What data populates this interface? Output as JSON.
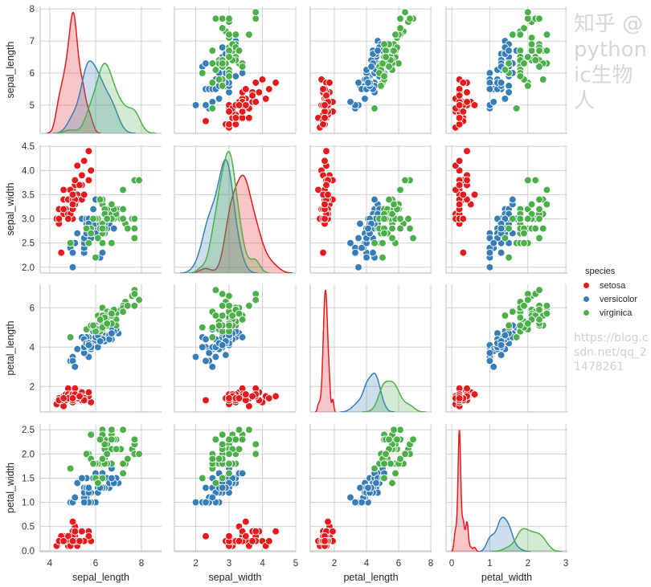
{
  "chart_data": {
    "type": "scatter",
    "subtype": "pairplot",
    "variables": [
      "sepal_length",
      "sepal_width",
      "petal_length",
      "petal_width"
    ],
    "axis_labels": [
      "sepal_length",
      "sepal_width",
      "petal_length",
      "petal_width"
    ],
    "x_ticks": [
      [
        "4",
        "6",
        "8"
      ],
      [
        "2",
        "3",
        "4",
        "5"
      ],
      [
        "2",
        "4",
        "6",
        "8"
      ],
      [
        "0",
        "1",
        "2",
        "3"
      ]
    ],
    "y_ticks": [
      [
        "5",
        "6",
        "7",
        "8"
      ],
      [
        "2.0",
        "2.5",
        "3.0",
        "3.5",
        "4.0",
        "4.5"
      ],
      [
        "2",
        "4",
        "6"
      ],
      [
        "0.0",
        "0.5",
        "1.0",
        "1.5",
        "2.0",
        "2.5"
      ]
    ],
    "xlim": [
      [
        3.58,
        8.88
      ],
      [
        1.36,
        5.0
      ],
      [
        0.5,
        8.05
      ],
      [
        -0.15,
        3.04
      ]
    ],
    "ylim": [
      [
        4.12,
        8.08
      ],
      [
        1.88,
        4.52
      ],
      [
        0.705,
        7.195
      ],
      [
        -0.02,
        2.62
      ]
    ],
    "diagonal": "kde",
    "grid": true,
    "legend_placement": "right",
    "legend": {
      "title": "species",
      "entries": [
        "setosa",
        "versicolor",
        "virginica"
      ]
    },
    "colors": {
      "setosa": "#e41a1c",
      "versicolor": "#377eb8",
      "virginica": "#4daf4a"
    },
    "series": [
      {
        "name": "setosa",
        "values": [
          [
            5.1,
            3.5,
            1.4,
            0.2
          ],
          [
            4.9,
            3.0,
            1.4,
            0.2
          ],
          [
            4.7,
            3.2,
            1.3,
            0.2
          ],
          [
            4.6,
            3.1,
            1.5,
            0.2
          ],
          [
            5.0,
            3.6,
            1.4,
            0.2
          ],
          [
            5.4,
            3.9,
            1.7,
            0.4
          ],
          [
            4.6,
            3.4,
            1.4,
            0.3
          ],
          [
            5.0,
            3.4,
            1.5,
            0.2
          ],
          [
            4.4,
            2.9,
            1.4,
            0.2
          ],
          [
            4.9,
            3.1,
            1.5,
            0.1
          ],
          [
            5.4,
            3.7,
            1.5,
            0.2
          ],
          [
            4.8,
            3.4,
            1.6,
            0.2
          ],
          [
            4.8,
            3.0,
            1.4,
            0.1
          ],
          [
            4.3,
            3.0,
            1.1,
            0.1
          ],
          [
            5.8,
            4.0,
            1.2,
            0.2
          ],
          [
            5.7,
            4.4,
            1.5,
            0.4
          ],
          [
            5.4,
            3.9,
            1.3,
            0.4
          ],
          [
            5.1,
            3.5,
            1.4,
            0.3
          ],
          [
            5.7,
            3.8,
            1.7,
            0.3
          ],
          [
            5.1,
            3.8,
            1.5,
            0.3
          ],
          [
            5.4,
            3.4,
            1.7,
            0.2
          ],
          [
            5.1,
            3.7,
            1.5,
            0.4
          ],
          [
            4.6,
            3.6,
            1.0,
            0.2
          ],
          [
            5.1,
            3.3,
            1.7,
            0.5
          ],
          [
            4.8,
            3.4,
            1.9,
            0.2
          ],
          [
            5.0,
            3.0,
            1.6,
            0.2
          ],
          [
            5.0,
            3.4,
            1.6,
            0.4
          ],
          [
            5.2,
            3.5,
            1.5,
            0.2
          ],
          [
            5.2,
            3.4,
            1.4,
            0.2
          ],
          [
            4.7,
            3.2,
            1.6,
            0.2
          ],
          [
            4.8,
            3.1,
            1.6,
            0.2
          ],
          [
            5.4,
            3.4,
            1.5,
            0.4
          ],
          [
            5.2,
            4.1,
            1.5,
            0.1
          ],
          [
            5.5,
            4.2,
            1.4,
            0.2
          ],
          [
            4.9,
            3.1,
            1.5,
            0.2
          ],
          [
            5.0,
            3.2,
            1.2,
            0.2
          ],
          [
            5.5,
            3.5,
            1.3,
            0.2
          ],
          [
            4.9,
            3.6,
            1.4,
            0.1
          ],
          [
            4.4,
            3.0,
            1.3,
            0.2
          ],
          [
            5.1,
            3.4,
            1.5,
            0.2
          ],
          [
            5.0,
            3.5,
            1.3,
            0.3
          ],
          [
            4.5,
            2.3,
            1.3,
            0.3
          ],
          [
            4.4,
            3.2,
            1.3,
            0.2
          ],
          [
            5.0,
            3.5,
            1.6,
            0.6
          ],
          [
            5.1,
            3.8,
            1.9,
            0.4
          ],
          [
            4.8,
            3.0,
            1.4,
            0.3
          ],
          [
            5.1,
            3.8,
            1.6,
            0.2
          ],
          [
            4.6,
            3.2,
            1.4,
            0.2
          ],
          [
            5.3,
            3.7,
            1.5,
            0.2
          ],
          [
            5.0,
            3.3,
            1.4,
            0.2
          ]
        ]
      },
      {
        "name": "versicolor",
        "values": [
          [
            7.0,
            3.2,
            4.7,
            1.4
          ],
          [
            6.4,
            3.2,
            4.5,
            1.5
          ],
          [
            6.9,
            3.1,
            4.9,
            1.5
          ],
          [
            5.5,
            2.3,
            4.0,
            1.3
          ],
          [
            6.5,
            2.8,
            4.6,
            1.5
          ],
          [
            5.7,
            2.8,
            4.5,
            1.3
          ],
          [
            6.3,
            3.3,
            4.7,
            1.6
          ],
          [
            4.9,
            2.4,
            3.3,
            1.0
          ],
          [
            6.6,
            2.9,
            4.6,
            1.3
          ],
          [
            5.2,
            2.7,
            3.9,
            1.4
          ],
          [
            5.0,
            2.0,
            3.5,
            1.0
          ],
          [
            5.9,
            3.0,
            4.2,
            1.5
          ],
          [
            6.0,
            2.2,
            4.0,
            1.0
          ],
          [
            6.1,
            2.9,
            4.7,
            1.4
          ],
          [
            5.6,
            2.9,
            3.6,
            1.3
          ],
          [
            6.7,
            3.1,
            4.4,
            1.4
          ],
          [
            5.6,
            3.0,
            4.5,
            1.5
          ],
          [
            5.8,
            2.7,
            4.1,
            1.0
          ],
          [
            6.2,
            2.2,
            4.5,
            1.5
          ],
          [
            5.6,
            2.5,
            3.9,
            1.1
          ],
          [
            5.9,
            3.2,
            4.8,
            1.8
          ],
          [
            6.1,
            2.8,
            4.0,
            1.3
          ],
          [
            6.3,
            2.5,
            4.9,
            1.5
          ],
          [
            6.1,
            2.8,
            4.7,
            1.2
          ],
          [
            6.4,
            2.9,
            4.3,
            1.3
          ],
          [
            6.6,
            3.0,
            4.4,
            1.4
          ],
          [
            6.8,
            2.8,
            4.8,
            1.4
          ],
          [
            6.7,
            3.0,
            5.0,
            1.7
          ],
          [
            6.0,
            2.9,
            4.5,
            1.5
          ],
          [
            5.7,
            2.6,
            3.5,
            1.0
          ],
          [
            5.5,
            2.4,
            3.8,
            1.1
          ],
          [
            5.5,
            2.4,
            3.7,
            1.0
          ],
          [
            5.8,
            2.7,
            3.9,
            1.2
          ],
          [
            6.0,
            2.7,
            5.1,
            1.6
          ],
          [
            5.4,
            3.0,
            4.5,
            1.5
          ],
          [
            6.0,
            3.4,
            4.5,
            1.6
          ],
          [
            6.7,
            3.1,
            4.7,
            1.5
          ],
          [
            6.3,
            2.3,
            4.4,
            1.3
          ],
          [
            5.6,
            3.0,
            4.1,
            1.3
          ],
          [
            5.5,
            2.5,
            4.0,
            1.3
          ],
          [
            5.5,
            2.6,
            4.4,
            1.2
          ],
          [
            6.1,
            3.0,
            4.6,
            1.4
          ],
          [
            5.8,
            2.6,
            4.0,
            1.2
          ],
          [
            5.0,
            2.3,
            3.3,
            1.0
          ],
          [
            5.6,
            2.7,
            4.2,
            1.3
          ],
          [
            5.7,
            3.0,
            4.2,
            1.2
          ],
          [
            5.7,
            2.9,
            4.2,
            1.3
          ],
          [
            6.2,
            2.9,
            4.3,
            1.3
          ],
          [
            5.1,
            2.5,
            3.0,
            1.1
          ],
          [
            5.7,
            2.8,
            4.1,
            1.3
          ]
        ]
      },
      {
        "name": "virginica",
        "values": [
          [
            6.3,
            3.3,
            6.0,
            2.5
          ],
          [
            5.8,
            2.7,
            5.1,
            1.9
          ],
          [
            7.1,
            3.0,
            5.9,
            2.1
          ],
          [
            6.3,
            2.9,
            5.6,
            1.8
          ],
          [
            6.5,
            3.0,
            5.8,
            2.2
          ],
          [
            7.6,
            3.0,
            6.6,
            2.1
          ],
          [
            4.9,
            2.5,
            4.5,
            1.7
          ],
          [
            7.3,
            2.9,
            6.3,
            1.8
          ],
          [
            6.7,
            2.5,
            5.8,
            1.8
          ],
          [
            7.2,
            3.6,
            6.1,
            2.5
          ],
          [
            6.5,
            3.2,
            5.1,
            2.0
          ],
          [
            6.4,
            2.7,
            5.3,
            1.9
          ],
          [
            6.8,
            3.0,
            5.5,
            2.1
          ],
          [
            5.7,
            2.5,
            5.0,
            2.0
          ],
          [
            5.8,
            2.8,
            5.1,
            2.4
          ],
          [
            6.4,
            3.2,
            5.3,
            2.3
          ],
          [
            6.5,
            3.0,
            5.5,
            1.8
          ],
          [
            7.7,
            3.8,
            6.7,
            2.2
          ],
          [
            7.7,
            2.6,
            6.9,
            2.3
          ],
          [
            6.0,
            2.2,
            5.0,
            1.5
          ],
          [
            6.9,
            3.2,
            5.7,
            2.3
          ],
          [
            5.6,
            2.8,
            4.9,
            2.0
          ],
          [
            7.7,
            2.8,
            6.7,
            2.0
          ],
          [
            6.3,
            2.7,
            4.9,
            1.8
          ],
          [
            6.7,
            3.3,
            5.7,
            2.1
          ],
          [
            7.2,
            3.2,
            6.0,
            1.8
          ],
          [
            6.2,
            2.8,
            4.8,
            1.8
          ],
          [
            6.1,
            3.0,
            4.9,
            1.8
          ],
          [
            6.4,
            2.8,
            5.6,
            2.1
          ],
          [
            7.2,
            3.0,
            5.8,
            1.6
          ],
          [
            7.4,
            2.8,
            6.1,
            1.9
          ],
          [
            7.9,
            3.8,
            6.4,
            2.0
          ],
          [
            6.4,
            2.8,
            5.6,
            2.2
          ],
          [
            6.3,
            2.8,
            5.1,
            1.5
          ],
          [
            6.1,
            2.6,
            5.6,
            1.4
          ],
          [
            7.7,
            3.0,
            6.1,
            2.3
          ],
          [
            6.3,
            3.4,
            5.6,
            2.4
          ],
          [
            6.4,
            3.1,
            5.5,
            1.8
          ],
          [
            6.0,
            3.0,
            4.8,
            1.8
          ],
          [
            6.9,
            3.1,
            5.4,
            2.1
          ],
          [
            6.7,
            3.1,
            5.6,
            2.4
          ],
          [
            6.9,
            3.1,
            5.1,
            2.3
          ],
          [
            5.8,
            2.7,
            5.1,
            1.9
          ],
          [
            6.8,
            3.2,
            5.9,
            2.3
          ],
          [
            6.7,
            3.3,
            5.7,
            2.5
          ],
          [
            6.7,
            3.0,
            5.2,
            2.3
          ],
          [
            6.3,
            2.5,
            5.0,
            1.9
          ],
          [
            6.5,
            3.0,
            5.2,
            2.0
          ],
          [
            6.2,
            3.4,
            5.4,
            2.3
          ],
          [
            5.9,
            3.0,
            5.1,
            1.8
          ]
        ]
      }
    ]
  },
  "watermark": {
    "line1": "知乎 @pythonic生物人",
    "line2": "https://blog.csdn.net/qq_21478261"
  }
}
